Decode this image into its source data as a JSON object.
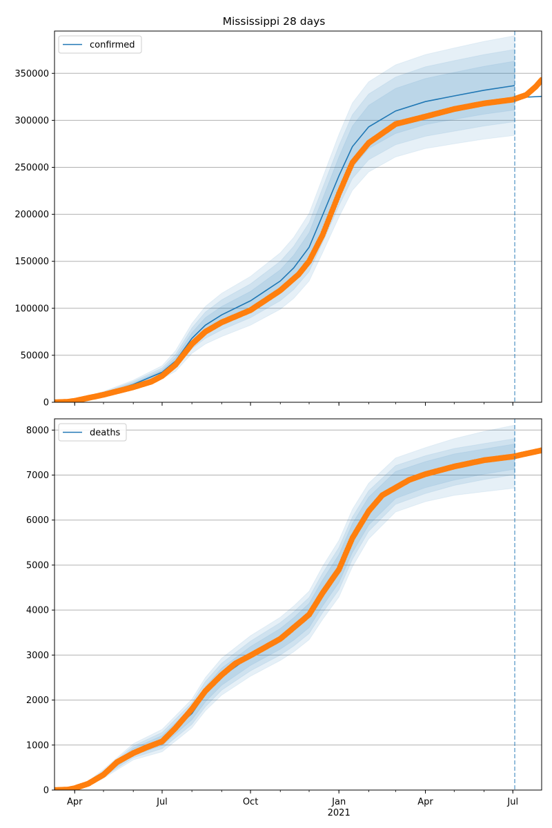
{
  "title": "Mississippi 28 days",
  "colors": {
    "model": "#1f77b4",
    "observed": "#ff7f0e",
    "band": "#1f77b4",
    "grid": "#b0b0b0",
    "cutoff": "#1f77b4"
  },
  "x_axis": {
    "ticks": [
      {
        "label": "Apr",
        "date": "2020-04-01"
      },
      {
        "label": "Jul",
        "date": "2020-07-01"
      },
      {
        "label": "Oct",
        "date": "2020-10-01"
      },
      {
        "label": "Jan",
        "date": "2021-01-01"
      },
      {
        "label": "Apr",
        "date": "2021-04-01"
      },
      {
        "label": "Jul",
        "date": "2021-07-01"
      }
    ],
    "year_label": "2021",
    "range": [
      "2020-03-11",
      "2021-07-31"
    ],
    "cutoff_date": "2021-07-03"
  },
  "chart_data": [
    {
      "type": "line",
      "legend": "confirmed",
      "legend_position": "upper-left",
      "grid": "horizontal",
      "ylim": [
        0,
        395000
      ],
      "yticks": [
        0,
        50000,
        100000,
        150000,
        200000,
        250000,
        300000,
        350000
      ],
      "model": {
        "x": [
          "2020-03-11",
          "2020-04-01",
          "2020-05-01",
          "2020-06-01",
          "2020-07-01",
          "2020-07-15",
          "2020-08-01",
          "2020-08-15",
          "2020-09-01",
          "2020-10-01",
          "2020-11-01",
          "2020-11-15",
          "2020-12-01",
          "2020-12-15",
          "2021-01-01",
          "2021-01-15",
          "2021-02-01",
          "2021-03-01",
          "2021-04-01",
          "2021-05-01",
          "2021-06-01",
          "2021-07-03"
        ],
        "y": [
          0,
          2000,
          9000,
          19000,
          32000,
          44000,
          68000,
          82000,
          93000,
          108000,
          129000,
          143000,
          165000,
          199000,
          241000,
          272000,
          293000,
          310000,
          320000,
          326000,
          332000,
          337000
        ]
      },
      "model_tail": {
        "x": [
          "2021-07-03",
          "2021-07-31"
        ],
        "y": [
          324000,
          325500
        ]
      },
      "bands_half_width": [
        [
          0,
          200,
          800,
          1500,
          2300,
          3500,
          6000,
          8000,
          9000,
          10000,
          12000,
          13500,
          15500,
          17500,
          20000,
          22000,
          23000,
          24000,
          24500,
          25000,
          25500,
          26000
        ],
        [
          0,
          400,
          1600,
          3000,
          4500,
          7000,
          11000,
          14000,
          16000,
          18000,
          21000,
          23000,
          26000,
          29000,
          32000,
          34000,
          35000,
          36000,
          37000,
          37500,
          38000,
          38500
        ],
        [
          0,
          600,
          2500,
          4500,
          7000,
          11000,
          16000,
          20000,
          23000,
          26000,
          30000,
          32500,
          36000,
          40000,
          44000,
          46500,
          48000,
          49000,
          50000,
          51000,
          52000,
          53000
        ]
      ],
      "observed": {
        "x": [
          "2020-03-11",
          "2020-03-25",
          "2020-04-01",
          "2020-05-01",
          "2020-06-01",
          "2020-06-20",
          "2020-07-01",
          "2020-07-15",
          "2020-08-01",
          "2020-08-15",
          "2020-09-01",
          "2020-10-01",
          "2020-11-01",
          "2020-11-20",
          "2020-12-01",
          "2020-12-15",
          "2021-01-01",
          "2021-01-15",
          "2021-02-01",
          "2021-03-01",
          "2021-04-01",
          "2021-05-01",
          "2021-06-01",
          "2021-07-01",
          "2021-07-15",
          "2021-07-25",
          "2021-07-31"
        ],
        "y": [
          0,
          500,
          1500,
          8000,
          16000,
          22000,
          28000,
          40000,
          62000,
          75000,
          85000,
          98000,
          119000,
          136000,
          150000,
          178000,
          222000,
          255000,
          276000,
          296000,
          304000,
          312000,
          318000,
          322000,
          327000,
          336000,
          343000
        ]
      }
    },
    {
      "type": "line",
      "legend": "deaths",
      "legend_position": "upper-left",
      "grid": "horizontal",
      "ylim": [
        0,
        8250
      ],
      "yticks": [
        0,
        1000,
        2000,
        3000,
        4000,
        5000,
        6000,
        7000,
        8000
      ],
      "model": {
        "x": [
          "2020-03-11",
          "2020-04-01",
          "2020-04-15",
          "2020-05-01",
          "2020-06-01",
          "2020-07-01",
          "2020-08-01",
          "2020-08-15",
          "2020-09-01",
          "2020-10-01",
          "2020-11-01",
          "2020-11-15",
          "2020-12-01",
          "2020-12-15",
          "2021-01-01",
          "2021-01-15",
          "2021-02-01",
          "2021-03-01",
          "2021-04-01",
          "2021-05-01",
          "2021-06-01",
          "2021-07-03"
        ],
        "y": [
          0,
          30,
          140,
          360,
          850,
          1100,
          1700,
          2130,
          2520,
          2980,
          3360,
          3580,
          3880,
          4380,
          4920,
          5600,
          6200,
          6780,
          7010,
          7180,
          7300,
          7410
        ]
      },
      "bands_half_width": [
        [
          0,
          5,
          20,
          40,
          80,
          110,
          140,
          170,
          190,
          210,
          230,
          250,
          270,
          290,
          310,
          320,
          310,
          300,
          290,
          290,
          280,
          280
        ],
        [
          0,
          10,
          35,
          70,
          130,
          180,
          240,
          280,
          300,
          330,
          360,
          380,
          400,
          440,
          470,
          470,
          450,
          430,
          420,
          410,
          400,
          400
        ],
        [
          0,
          15,
          55,
          100,
          180,
          250,
          320,
          370,
          410,
          450,
          480,
          510,
          540,
          590,
          630,
          640,
          620,
          600,
          600,
          630,
          670,
          700
        ]
      ],
      "observed": {
        "x": [
          "2020-03-11",
          "2020-03-25",
          "2020-04-01",
          "2020-04-15",
          "2020-05-01",
          "2020-05-15",
          "2020-06-01",
          "2020-06-15",
          "2020-07-01",
          "2020-07-15",
          "2020-08-01",
          "2020-08-15",
          "2020-09-01",
          "2020-09-15",
          "2020-10-01",
          "2020-11-01",
          "2020-11-20",
          "2020-12-01",
          "2020-12-15",
          "2021-01-01",
          "2021-01-15",
          "2021-02-01",
          "2021-02-15",
          "2021-03-01",
          "2021-03-15",
          "2021-04-01",
          "2021-05-01",
          "2021-06-01",
          "2021-07-01",
          "2021-07-31"
        ],
        "y": [
          0,
          10,
          40,
          140,
          340,
          620,
          820,
          950,
          1080,
          1380,
          1800,
          2200,
          2560,
          2810,
          2990,
          3360,
          3700,
          3900,
          4380,
          4900,
          5600,
          6200,
          6550,
          6720,
          6890,
          7020,
          7190,
          7330,
          7410,
          7550
        ]
      }
    }
  ]
}
